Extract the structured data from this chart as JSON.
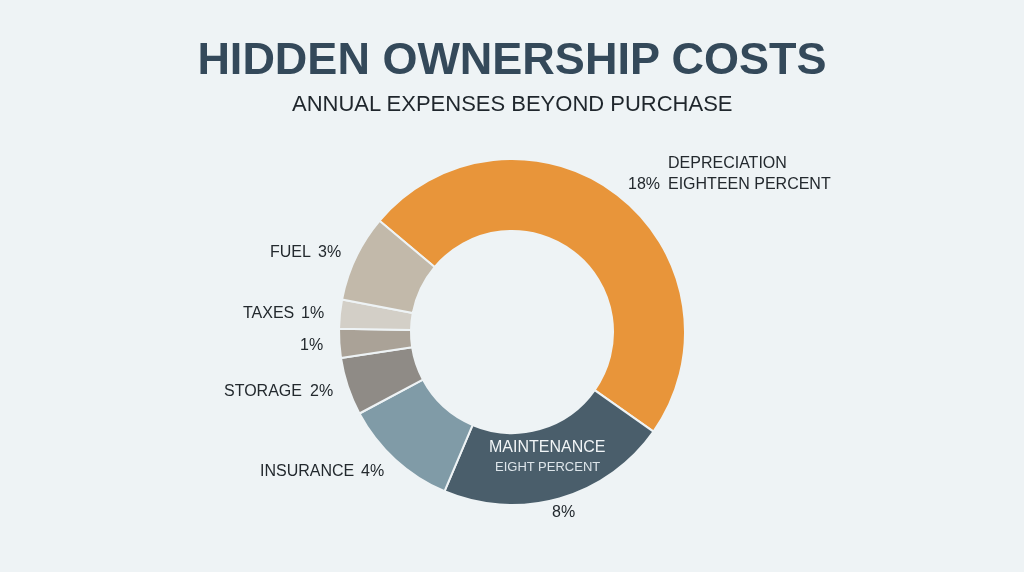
{
  "chart_data": {
    "type": "donut",
    "title": "HIDDEN OWNERSHIP COSTS",
    "subtitle": "ANNUAL EXPENSES BEYOND PURCHASE",
    "categories": [
      "DEPRECIATION",
      "MAINTENANCE",
      "INSURANCE",
      "STORAGE",
      null,
      "TAXES",
      "FUEL"
    ],
    "values": [
      18,
      8,
      4,
      2,
      1,
      1,
      3
    ],
    "value_labels": [
      "18%",
      "8%",
      "4%",
      "2%",
      "1%",
      "1%",
      "3%"
    ],
    "colors": [
      "#e8953a",
      "#4a5e6b",
      "#809ba7",
      "#8f8b86",
      "#aaa297",
      "#d3cfc7",
      "#c2b9aa"
    ],
    "annotations": [
      "EIGHTEEN PERCENT",
      "EIGHT PERCENT"
    ]
  }
}
